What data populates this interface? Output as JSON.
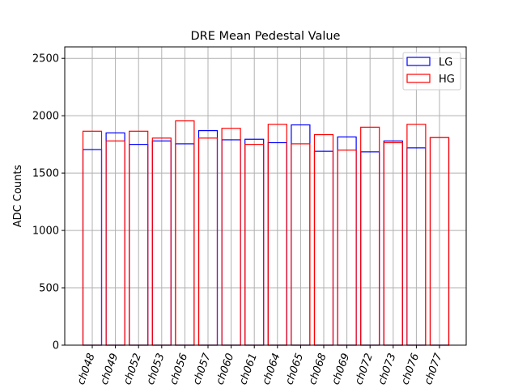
{
  "chart_data": {
    "type": "bar",
    "title": "DRE Mean Pedestal Value",
    "xlabel": "",
    "ylabel": "ADC Counts",
    "ylim": [
      0,
      2600
    ],
    "yticks": [
      0,
      500,
      1000,
      1500,
      2000,
      2500
    ],
    "grid": true,
    "legend_position": "top-right",
    "categories": [
      "ch048",
      "ch049",
      "ch052",
      "ch053",
      "ch056",
      "ch057",
      "ch060",
      "ch061",
      "ch064",
      "ch065",
      "ch068",
      "ch069",
      "ch072",
      "ch073",
      "ch076",
      "ch077"
    ],
    "series": [
      {
        "name": "LG",
        "color": "#0000ff",
        "values": [
          1705,
          1850,
          1750,
          1780,
          1755,
          1870,
          1790,
          1795,
          1765,
          1920,
          1690,
          1815,
          1685,
          1780,
          1720,
          1810
        ]
      },
      {
        "name": "HG",
        "color": "#ff0000",
        "values": [
          1865,
          1780,
          1865,
          1805,
          1955,
          1805,
          1890,
          1750,
          1925,
          1755,
          1835,
          1700,
          1900,
          1765,
          1925,
          1810
        ]
      }
    ]
  }
}
